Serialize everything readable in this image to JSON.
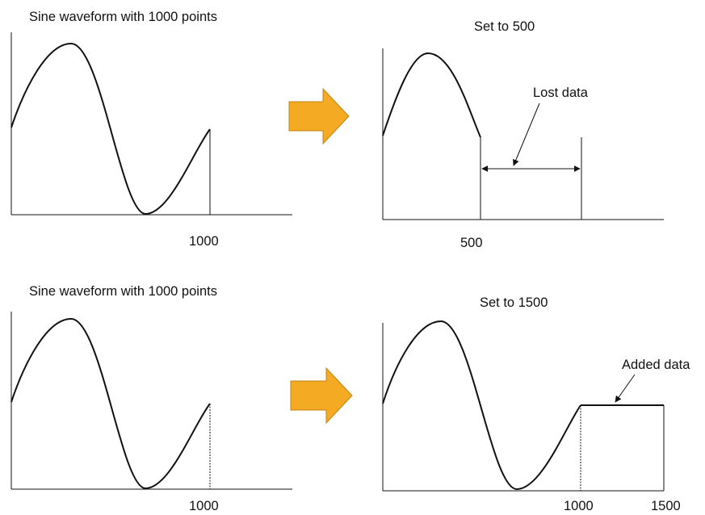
{
  "top_left": {
    "title": "Sine waveform with 1000 points",
    "end_label": "1000"
  },
  "top_right": {
    "title": "Set to 500",
    "end_label": "500",
    "callout": "Lost data"
  },
  "bottom_left": {
    "title": "Sine waveform with 1000 points",
    "end_label": "1000"
  },
  "bottom_right": {
    "title": "Set to 1500",
    "mid_label": "1000",
    "end_label": "1500",
    "callout": "Added data"
  },
  "colors": {
    "arrow_fill": "#f4aa22",
    "arrow_stroke": "#c08414",
    "line": "#111111"
  }
}
